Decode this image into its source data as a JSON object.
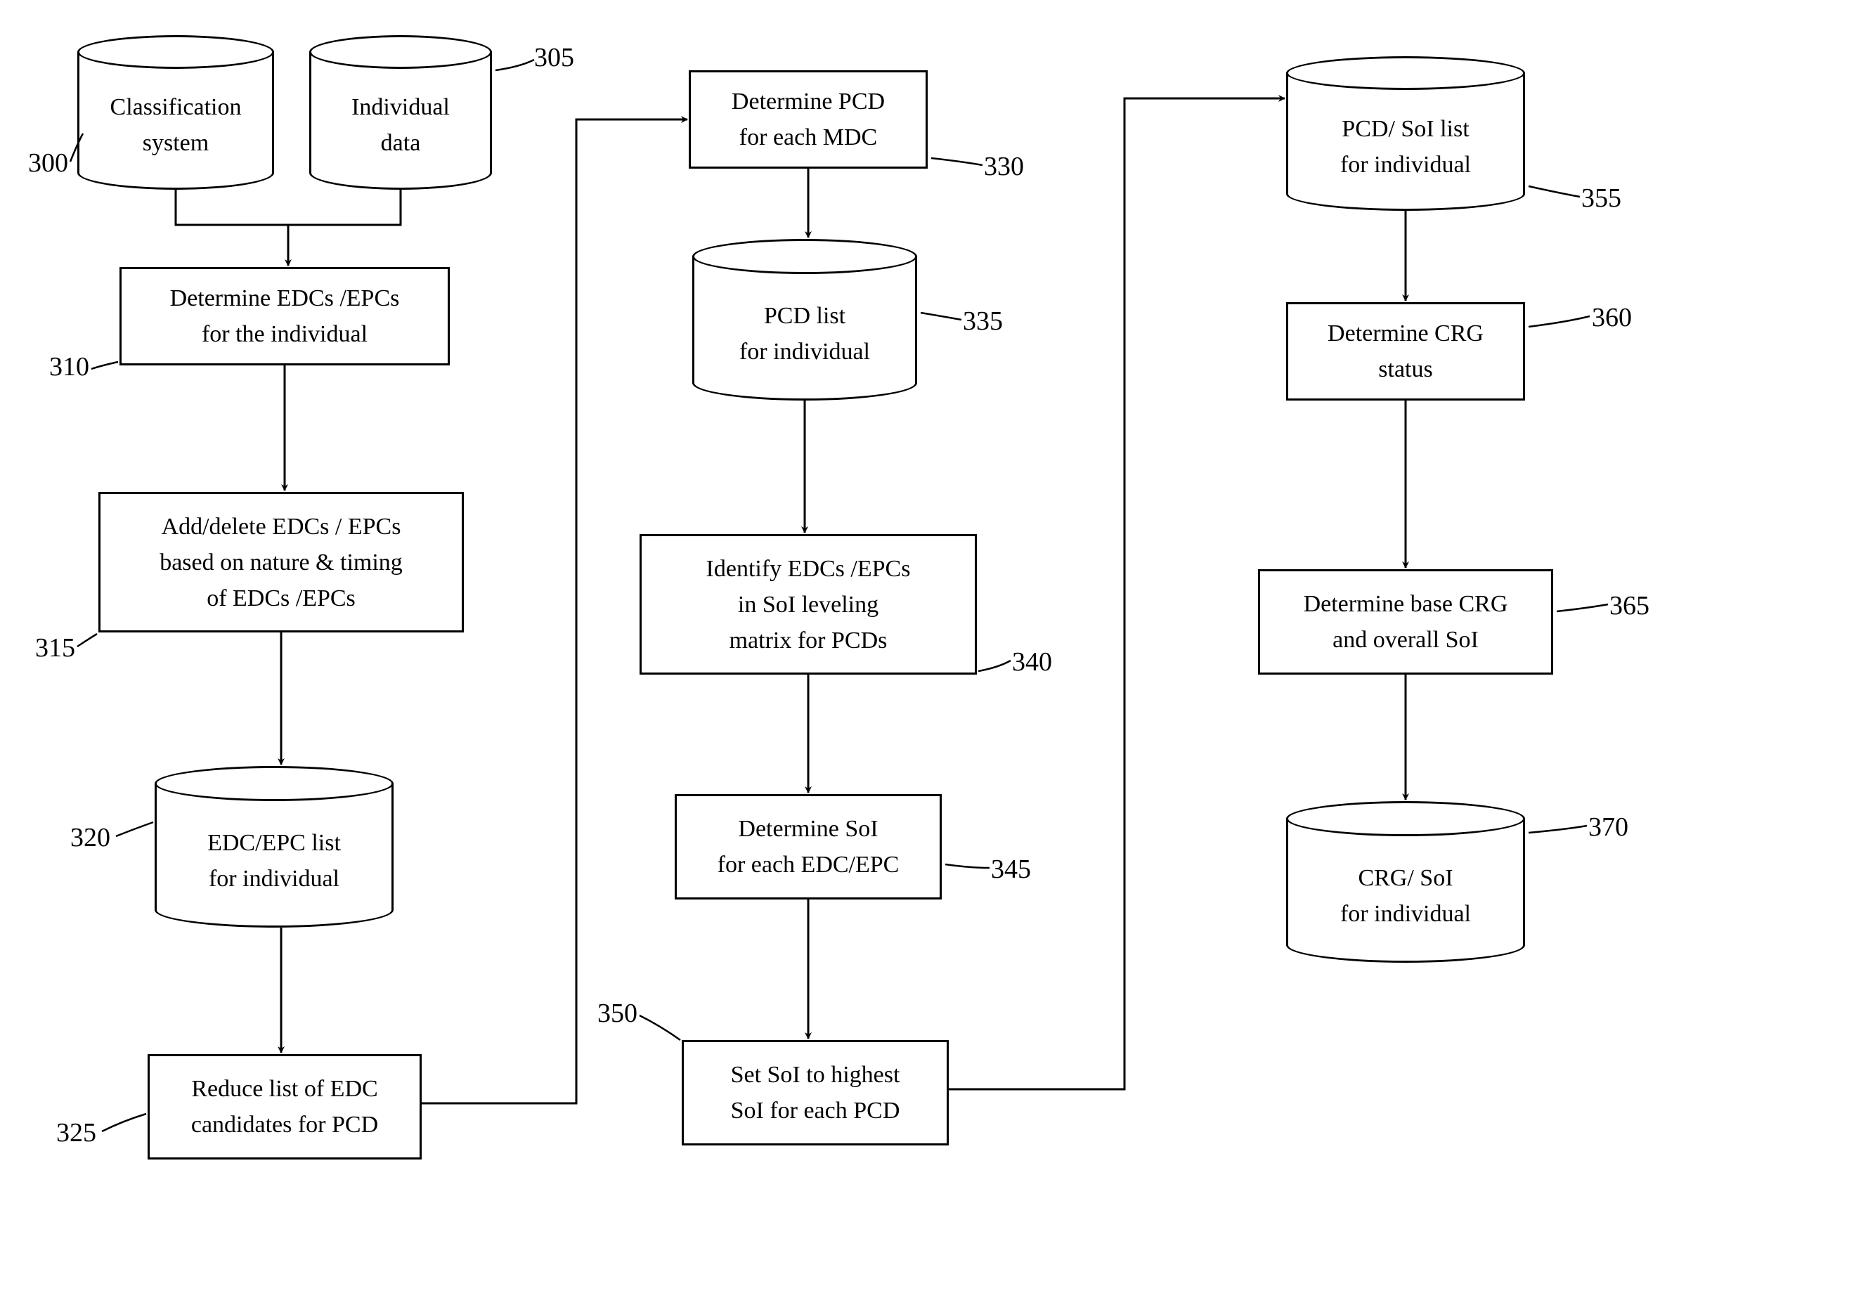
{
  "diagram": {
    "type": "flowchart",
    "background_color": "#ffffff",
    "stroke_color": "#000000",
    "font_family": "Times New Roman",
    "label_fontsize": 34,
    "ref_fontsize": 38,
    "line_width": 3,
    "nodes": {
      "n300": {
        "shape": "cylinder",
        "text": "Classification\nsystem",
        "ref": "300"
      },
      "n305": {
        "shape": "cylinder",
        "text": "Individual\ndata",
        "ref": "305"
      },
      "n310": {
        "shape": "rect",
        "text": "Determine   EDCs  /EPCs\nfor the individual",
        "ref": "310"
      },
      "n315": {
        "shape": "rect",
        "text": "Add/delete   EDCs / EPCs\nbased on nature & timing\nof EDCs  /EPCs",
        "ref": "315"
      },
      "n320": {
        "shape": "cylinder",
        "text": "EDC/EPC list\nfor individual",
        "ref": "320"
      },
      "n325": {
        "shape": "rect",
        "text": "Reduce list of EDC\ncandidates for PCD",
        "ref": "325"
      },
      "n330": {
        "shape": "rect",
        "text": "Determine PCD\nfor each MDC",
        "ref": "330"
      },
      "n335": {
        "shape": "cylinder",
        "text": "PCD list\nfor individual",
        "ref": "335"
      },
      "n340": {
        "shape": "rect",
        "text": "Identify   EDCs  /EPCs\nin  SoI  leveling\nmatrix for    PCDs",
        "ref": "340"
      },
      "n345": {
        "shape": "rect",
        "text": "Determine    SoI\nfor each EDC/EPC",
        "ref": "345"
      },
      "n350": {
        "shape": "rect",
        "text": "Set  SoI  to highest\nSoI  for each PCD",
        "ref": "350"
      },
      "n355": {
        "shape": "cylinder",
        "text": "PCD/  SoI  list\nfor individual",
        "ref": "355"
      },
      "n360": {
        "shape": "rect",
        "text": "Determine CRG\nstatus",
        "ref": "360"
      },
      "n365": {
        "shape": "rect",
        "text": "Determine base CRG\nand overall    SoI",
        "ref": "365"
      },
      "n370": {
        "shape": "cylinder",
        "text": "CRG/  SoI\nfor individual",
        "ref": "370"
      }
    }
  }
}
